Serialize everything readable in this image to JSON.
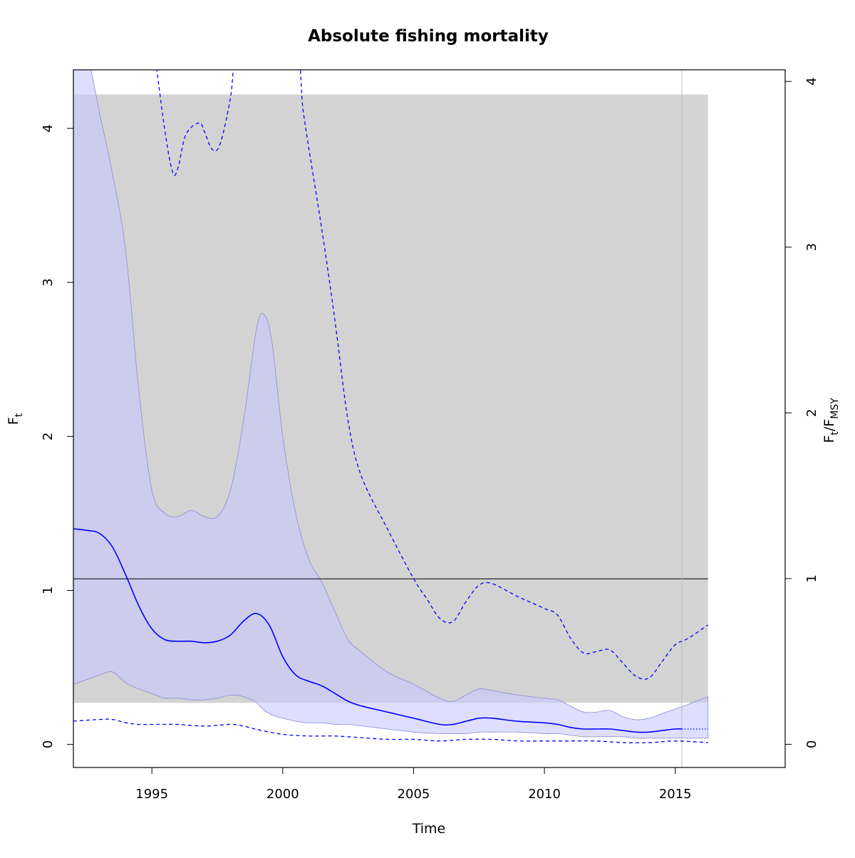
{
  "chart_data": {
    "type": "line",
    "title": "Absolute fishing mortality",
    "xlabel": "Time",
    "ylabel_main": "F",
    "ylabel_sub": "t",
    "y2label_main1": "F",
    "y2label_sub1": "t",
    "y2label_sep": "/F",
    "y2label_sub2": "MSY",
    "xlim": [
      1992,
      2019.2
    ],
    "ylim": [
      -0.15,
      4.38
    ],
    "y2lim": [
      -0.14,
      4.07
    ],
    "x_ticks": [
      1995,
      2000,
      2005,
      2010,
      2015
    ],
    "y_ticks": [
      0,
      1,
      2,
      3,
      4
    ],
    "y2_ticks": [
      0,
      1,
      2,
      3,
      4
    ],
    "gray_region": {
      "x": [
        1992,
        2016.25
      ],
      "y": [
        0.27,
        4.22
      ]
    },
    "reference_line": {
      "x": [
        1992,
        2016.25
      ],
      "y": 1.075
    },
    "vertical_line": 2015.25,
    "colors": {
      "series": "#0000ff",
      "band": "#c8c8ff",
      "gray_region": "#d3d3d3",
      "reference_line": "#000000",
      "vertical_line": "#bebebe"
    },
    "series": [
      {
        "role": "estimate",
        "style": "solid",
        "x": [
          1992.0,
          1992.5,
          1993.0,
          1993.5,
          1994.0,
          1994.5,
          1995.0,
          1995.5,
          1996.0,
          1996.5,
          1997.0,
          1997.5,
          1998.0,
          1998.5,
          1999.0,
          1999.5,
          2000.0,
          2000.5,
          2001.0,
          2001.5,
          2002.0,
          2002.5,
          2003.0,
          2004.0,
          2005.0,
          2006.0,
          2006.5,
          2007.0,
          2007.5,
          2008.0,
          2009.0,
          2010.0,
          2010.5,
          2011.0,
          2011.5,
          2012.0,
          2012.5,
          2013.0,
          2013.5,
          2014.0,
          2014.5,
          2015.0,
          2015.25
        ],
        "y": [
          1.4,
          1.39,
          1.37,
          1.28,
          1.1,
          0.9,
          0.75,
          0.68,
          0.67,
          0.67,
          0.66,
          0.67,
          0.71,
          0.8,
          0.85,
          0.77,
          0.57,
          0.45,
          0.41,
          0.38,
          0.33,
          0.28,
          0.25,
          0.21,
          0.17,
          0.13,
          0.13,
          0.15,
          0.17,
          0.17,
          0.15,
          0.14,
          0.13,
          0.11,
          0.1,
          0.1,
          0.1,
          0.09,
          0.08,
          0.08,
          0.09,
          0.1,
          0.1
        ]
      },
      {
        "role": "projection",
        "style": "dotted",
        "x": [
          2015.25,
          2016.25
        ],
        "y": [
          0.1,
          0.1
        ]
      },
      {
        "role": "upper_ci_ratio",
        "style": "dashed",
        "axis": "right",
        "x": [
          1993.6,
          1995.0,
          1995.5,
          1995.8,
          1996.0,
          1996.3,
          1996.8,
          1997.0,
          1997.3,
          1997.6,
          1998.0,
          1998.5,
          2000.4,
          2000.8,
          2001.5,
          2002.0,
          2002.5,
          2003.0,
          2004.0,
          2005.0,
          2005.5,
          2006.0,
          2006.5,
          2007.0,
          2007.5,
          2008.0,
          2009.0,
          2010.0,
          2010.5,
          2011.0,
          2011.5,
          2012.0,
          2012.5,
          2013.0,
          2013.5,
          2014.0,
          2014.5,
          2015.0,
          2015.5,
          2016.25
        ],
        "y": [
          6.0,
          4.3,
          3.7,
          3.45,
          3.48,
          3.68,
          3.75,
          3.7,
          3.59,
          3.62,
          3.9,
          4.4,
          4.3,
          3.8,
          3.1,
          2.55,
          1.95,
          1.62,
          1.3,
          1.0,
          0.88,
          0.76,
          0.74,
          0.86,
          0.96,
          0.97,
          0.89,
          0.82,
          0.78,
          0.64,
          0.55,
          0.56,
          0.57,
          0.49,
          0.41,
          0.4,
          0.5,
          0.6,
          0.64,
          0.72
        ]
      },
      {
        "role": "lower_ci_ratio",
        "style": "dashed",
        "axis": "right",
        "x": [
          1992.0,
          1993.0,
          1993.5,
          1994.0,
          1994.5,
          1995.0,
          1995.5,
          1996.0,
          1997.0,
          1998.0,
          1998.5,
          1999.0,
          2000.0,
          2001.0,
          2002.0,
          2003.0,
          2004.0,
          2005.0,
          2006.0,
          2007.0,
          2008.0,
          2009.0,
          2010.0,
          2011.0,
          2012.0,
          2013.0,
          2014.0,
          2015.0,
          2016.25
        ],
        "y": [
          0.14,
          0.15,
          0.15,
          0.13,
          0.12,
          0.12,
          0.12,
          0.12,
          0.11,
          0.12,
          0.11,
          0.09,
          0.06,
          0.05,
          0.05,
          0.04,
          0.03,
          0.03,
          0.02,
          0.03,
          0.03,
          0.02,
          0.02,
          0.02,
          0.02,
          0.01,
          0.01,
          0.02,
          0.01
        ]
      }
    ],
    "ci_band": {
      "x": [
        1992.0,
        1992.5,
        1993.0,
        1993.5,
        1994.0,
        1994.5,
        1995.0,
        1995.5,
        1996.0,
        1996.5,
        1997.0,
        1997.5,
        1998.0,
        1998.5,
        1999.0,
        1999.3,
        1999.6,
        2000.0,
        2000.5,
        2001.0,
        2001.5,
        2002.0,
        2002.5,
        2003.0,
        2004.0,
        2005.0,
        2006.0,
        2006.5,
        2007.0,
        2007.5,
        2008.0,
        2009.0,
        2010.0,
        2010.5,
        2011.0,
        2011.5,
        2012.0,
        2012.5,
        2013.0,
        2013.5,
        2014.0,
        2014.5,
        2015.0,
        2015.5,
        2016.25
      ],
      "upper": [
        4.6,
        4.5,
        4.1,
        3.7,
        3.2,
        2.3,
        1.65,
        1.5,
        1.48,
        1.52,
        1.48,
        1.48,
        1.65,
        2.1,
        2.7,
        2.79,
        2.6,
        2.0,
        1.5,
        1.2,
        1.05,
        0.86,
        0.68,
        0.6,
        0.47,
        0.39,
        0.3,
        0.28,
        0.32,
        0.36,
        0.35,
        0.32,
        0.3,
        0.29,
        0.25,
        0.21,
        0.21,
        0.22,
        0.18,
        0.16,
        0.17,
        0.2,
        0.23,
        0.26,
        0.31
      ],
      "lower": [
        0.39,
        0.42,
        0.45,
        0.47,
        0.4,
        0.36,
        0.33,
        0.3,
        0.3,
        0.29,
        0.29,
        0.3,
        0.32,
        0.31,
        0.27,
        0.22,
        0.19,
        0.17,
        0.15,
        0.14,
        0.14,
        0.13,
        0.13,
        0.12,
        0.1,
        0.08,
        0.07,
        0.07,
        0.07,
        0.08,
        0.08,
        0.08,
        0.07,
        0.07,
        0.06,
        0.05,
        0.05,
        0.05,
        0.05,
        0.04,
        0.04,
        0.04,
        0.04,
        0.04,
        0.04
      ]
    }
  }
}
